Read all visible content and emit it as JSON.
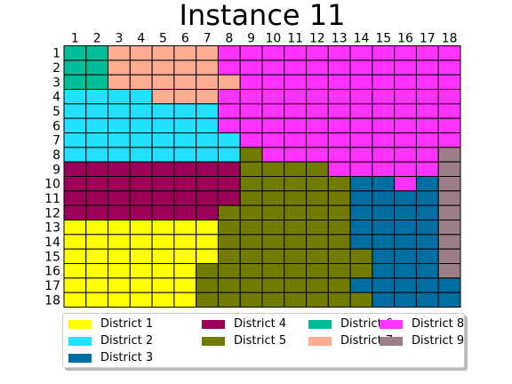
{
  "chart_data": {
    "type": "heatmap",
    "title": "Instance 11",
    "x_ticks": [
      "1",
      "2",
      "3",
      "4",
      "5",
      "6",
      "7",
      "8",
      "9",
      "10",
      "11",
      "12",
      "13",
      "14",
      "15",
      "16",
      "17",
      "18"
    ],
    "y_ticks": [
      "1",
      "2",
      "3",
      "4",
      "5",
      "6",
      "7",
      "8",
      "9",
      "10",
      "11",
      "12",
      "13",
      "14",
      "15",
      "16",
      "17",
      "18"
    ],
    "districts": [
      {
        "id": 1,
        "name": "District 1",
        "color": "#ffff00"
      },
      {
        "id": 2,
        "name": "District 2",
        "color": "#22e1ff"
      },
      {
        "id": 3,
        "name": "District 3",
        "color": "#006ea1"
      },
      {
        "id": 4,
        "name": "District 4",
        "color": "#9d0057"
      },
      {
        "id": 5,
        "name": "District 5",
        "color": "#707b00"
      },
      {
        "id": 6,
        "name": "District 6",
        "color": "#00bd97"
      },
      {
        "id": 7,
        "name": "District 7",
        "color": "#ffac92"
      },
      {
        "id": 8,
        "name": "District 8",
        "color": "#ff32ff"
      },
      {
        "id": 9,
        "name": "District 9",
        "color": "#9b7e88"
      }
    ],
    "legend_order": [
      1,
      4,
      6,
      8,
      2,
      5,
      7,
      9,
      3
    ],
    "grid": [
      [
        6,
        6,
        7,
        7,
        7,
        7,
        7,
        8,
        8,
        8,
        8,
        8,
        8,
        8,
        8,
        8,
        8,
        8
      ],
      [
        6,
        6,
        7,
        7,
        7,
        7,
        7,
        8,
        8,
        8,
        8,
        8,
        8,
        8,
        8,
        8,
        8,
        8
      ],
      [
        6,
        6,
        7,
        7,
        7,
        7,
        7,
        7,
        8,
        8,
        8,
        8,
        8,
        8,
        8,
        8,
        8,
        8
      ],
      [
        2,
        2,
        2,
        2,
        7,
        7,
        7,
        8,
        8,
        8,
        8,
        8,
        8,
        8,
        8,
        8,
        8,
        8
      ],
      [
        2,
        2,
        2,
        2,
        2,
        2,
        2,
        8,
        8,
        8,
        8,
        8,
        8,
        8,
        8,
        8,
        8,
        8
      ],
      [
        2,
        2,
        2,
        2,
        2,
        2,
        2,
        8,
        8,
        8,
        8,
        8,
        8,
        8,
        8,
        8,
        8,
        8
      ],
      [
        2,
        2,
        2,
        2,
        2,
        2,
        2,
        2,
        8,
        8,
        8,
        8,
        8,
        8,
        8,
        8,
        8,
        8
      ],
      [
        2,
        2,
        2,
        2,
        2,
        2,
        2,
        2,
        5,
        8,
        8,
        8,
        8,
        8,
        8,
        8,
        8,
        9
      ],
      [
        4,
        4,
        4,
        4,
        4,
        4,
        4,
        4,
        5,
        5,
        5,
        5,
        8,
        8,
        8,
        8,
        8,
        9
      ],
      [
        4,
        4,
        4,
        4,
        4,
        4,
        4,
        4,
        5,
        5,
        5,
        5,
        5,
        3,
        3,
        8,
        3,
        9
      ],
      [
        4,
        4,
        4,
        4,
        4,
        4,
        4,
        4,
        5,
        5,
        5,
        5,
        5,
        3,
        3,
        3,
        3,
        9
      ],
      [
        4,
        4,
        4,
        4,
        4,
        4,
        4,
        5,
        5,
        5,
        5,
        5,
        5,
        3,
        3,
        3,
        3,
        9
      ],
      [
        1,
        1,
        1,
        1,
        1,
        1,
        1,
        5,
        5,
        5,
        5,
        5,
        5,
        3,
        3,
        3,
        3,
        9
      ],
      [
        1,
        1,
        1,
        1,
        1,
        1,
        1,
        5,
        5,
        5,
        5,
        5,
        5,
        3,
        3,
        3,
        3,
        9
      ],
      [
        1,
        1,
        1,
        1,
        1,
        1,
        1,
        5,
        5,
        5,
        5,
        5,
        5,
        5,
        3,
        3,
        3,
        9
      ],
      [
        1,
        1,
        1,
        1,
        1,
        1,
        5,
        5,
        5,
        5,
        5,
        5,
        5,
        5,
        3,
        3,
        3,
        9
      ],
      [
        1,
        1,
        1,
        1,
        1,
        1,
        5,
        5,
        5,
        5,
        5,
        5,
        5,
        3,
        3,
        3,
        3,
        3
      ],
      [
        1,
        1,
        1,
        1,
        1,
        1,
        5,
        5,
        5,
        5,
        5,
        5,
        5,
        5,
        3,
        3,
        3,
        3
      ]
    ]
  }
}
